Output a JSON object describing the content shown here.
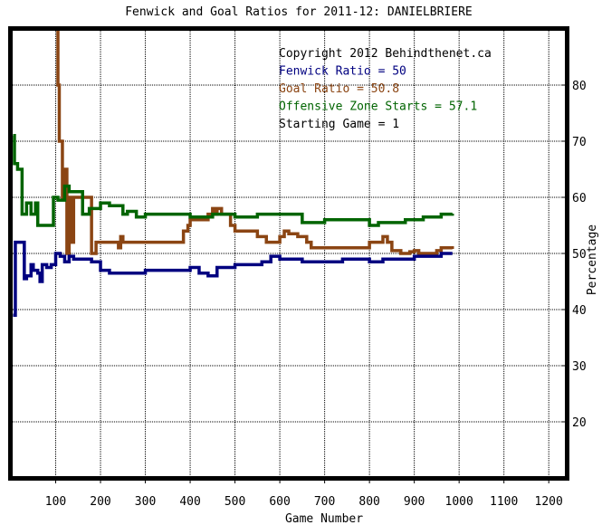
{
  "chart_data": {
    "type": "line",
    "title": "Fenwick and Goal Ratios for 2011-12: DANIELBRIERE",
    "xlabel": "Game Number",
    "ylabel": "Percentage",
    "xlim": [
      0,
      1240
    ],
    "ylim": [
      10,
      90
    ],
    "xticks": [
      100,
      200,
      300,
      400,
      500,
      600,
      700,
      800,
      900,
      1000,
      1100,
      1200
    ],
    "yticks": [
      20,
      30,
      40,
      50,
      60,
      70,
      80
    ],
    "grid": true,
    "annotations": [
      {
        "text": "Copyright 2012 Behindthenet.ca",
        "color": "#000000"
      },
      {
        "text": "Fenwick Ratio = 50",
        "color": "#000080"
      },
      {
        "text": "Goal Ratio = 50.8",
        "color": "#8b4513"
      },
      {
        "text": "Offensive Zone Starts = 57.1",
        "color": "#006400"
      },
      {
        "text": "Starting Game = 1",
        "color": "#000000"
      }
    ],
    "series": [
      {
        "name": "Goal Ratio",
        "color": "#8b4513",
        "x": [
          100,
          105,
          108,
          115,
          120,
          125,
          130,
          135,
          140,
          180,
          190,
          200,
          240,
          245,
          250,
          300,
          380,
          385,
          395,
          400,
          420,
          440,
          450,
          455,
          460,
          470,
          490,
          500,
          540,
          550,
          560,
          570,
          580,
          600,
          610,
          620,
          640,
          660,
          670,
          690,
          700,
          740,
          760,
          800,
          830,
          840,
          850,
          870,
          880,
          890,
          900,
          910,
          950,
          960,
          970,
          985
        ],
        "y": [
          100,
          80,
          70,
          60,
          65,
          50,
          60,
          52,
          60,
          50,
          52,
          52,
          51,
          53,
          52,
          52,
          52,
          54,
          55,
          56,
          56,
          57,
          58,
          57,
          58,
          57,
          55,
          54,
          54,
          53,
          53,
          52,
          52,
          53,
          54,
          53.5,
          53,
          52,
          51,
          51,
          51,
          51,
          51,
          52,
          53,
          52,
          50.5,
          50,
          50,
          50.3,
          50.5,
          50,
          50.5,
          51,
          51,
          50.8
        ]
      },
      {
        "name": "Fenwick Ratio",
        "color": "#000080",
        "x": [
          5,
          10,
          20,
          30,
          35,
          45,
          50,
          60,
          65,
          70,
          80,
          90,
          100,
          110,
          120,
          130,
          140,
          160,
          180,
          200,
          220,
          250,
          300,
          340,
          380,
          400,
          420,
          440,
          460,
          480,
          500,
          520,
          540,
          560,
          580,
          600,
          620,
          650,
          680,
          700,
          740,
          780,
          800,
          830,
          860,
          880,
          900,
          920,
          940,
          960,
          985
        ],
        "y": [
          39,
          52,
          52,
          45.5,
          46,
          48,
          47,
          46.5,
          45,
          48,
          47.5,
          48,
          50,
          49.5,
          48.5,
          49.5,
          49,
          49,
          48.5,
          47,
          46.5,
          46.5,
          47,
          47,
          47,
          47.5,
          46.5,
          46,
          47.5,
          47.5,
          48,
          48,
          48,
          48.5,
          49.5,
          49,
          49,
          48.5,
          48.5,
          48.5,
          49,
          49,
          48.5,
          49,
          49,
          49,
          49.5,
          49.5,
          49.5,
          50,
          50
        ]
      },
      {
        "name": "Offensive Zone Starts",
        "color": "#006400",
        "x": [
          5,
          8,
          15,
          25,
          35,
          45,
          55,
          60,
          70,
          80,
          95,
          105,
          120,
          130,
          160,
          175,
          185,
          200,
          220,
          250,
          260,
          280,
          300,
          350,
          400,
          450,
          500,
          550,
          600,
          650,
          700,
          750,
          800,
          820,
          840,
          860,
          880,
          900,
          920,
          940,
          960,
          985
        ],
        "y": [
          71,
          66,
          65,
          57,
          59,
          57,
          59,
          55,
          55,
          55,
          60,
          59.5,
          62,
          61,
          57,
          58,
          58,
          59,
          58.5,
          57,
          57.5,
          56.5,
          57,
          57,
          56.5,
          57,
          56.5,
          57,
          57,
          55.5,
          56,
          56,
          55,
          55.5,
          55.5,
          55.5,
          56,
          56,
          56.5,
          56.5,
          57,
          57.1
        ]
      }
    ]
  }
}
